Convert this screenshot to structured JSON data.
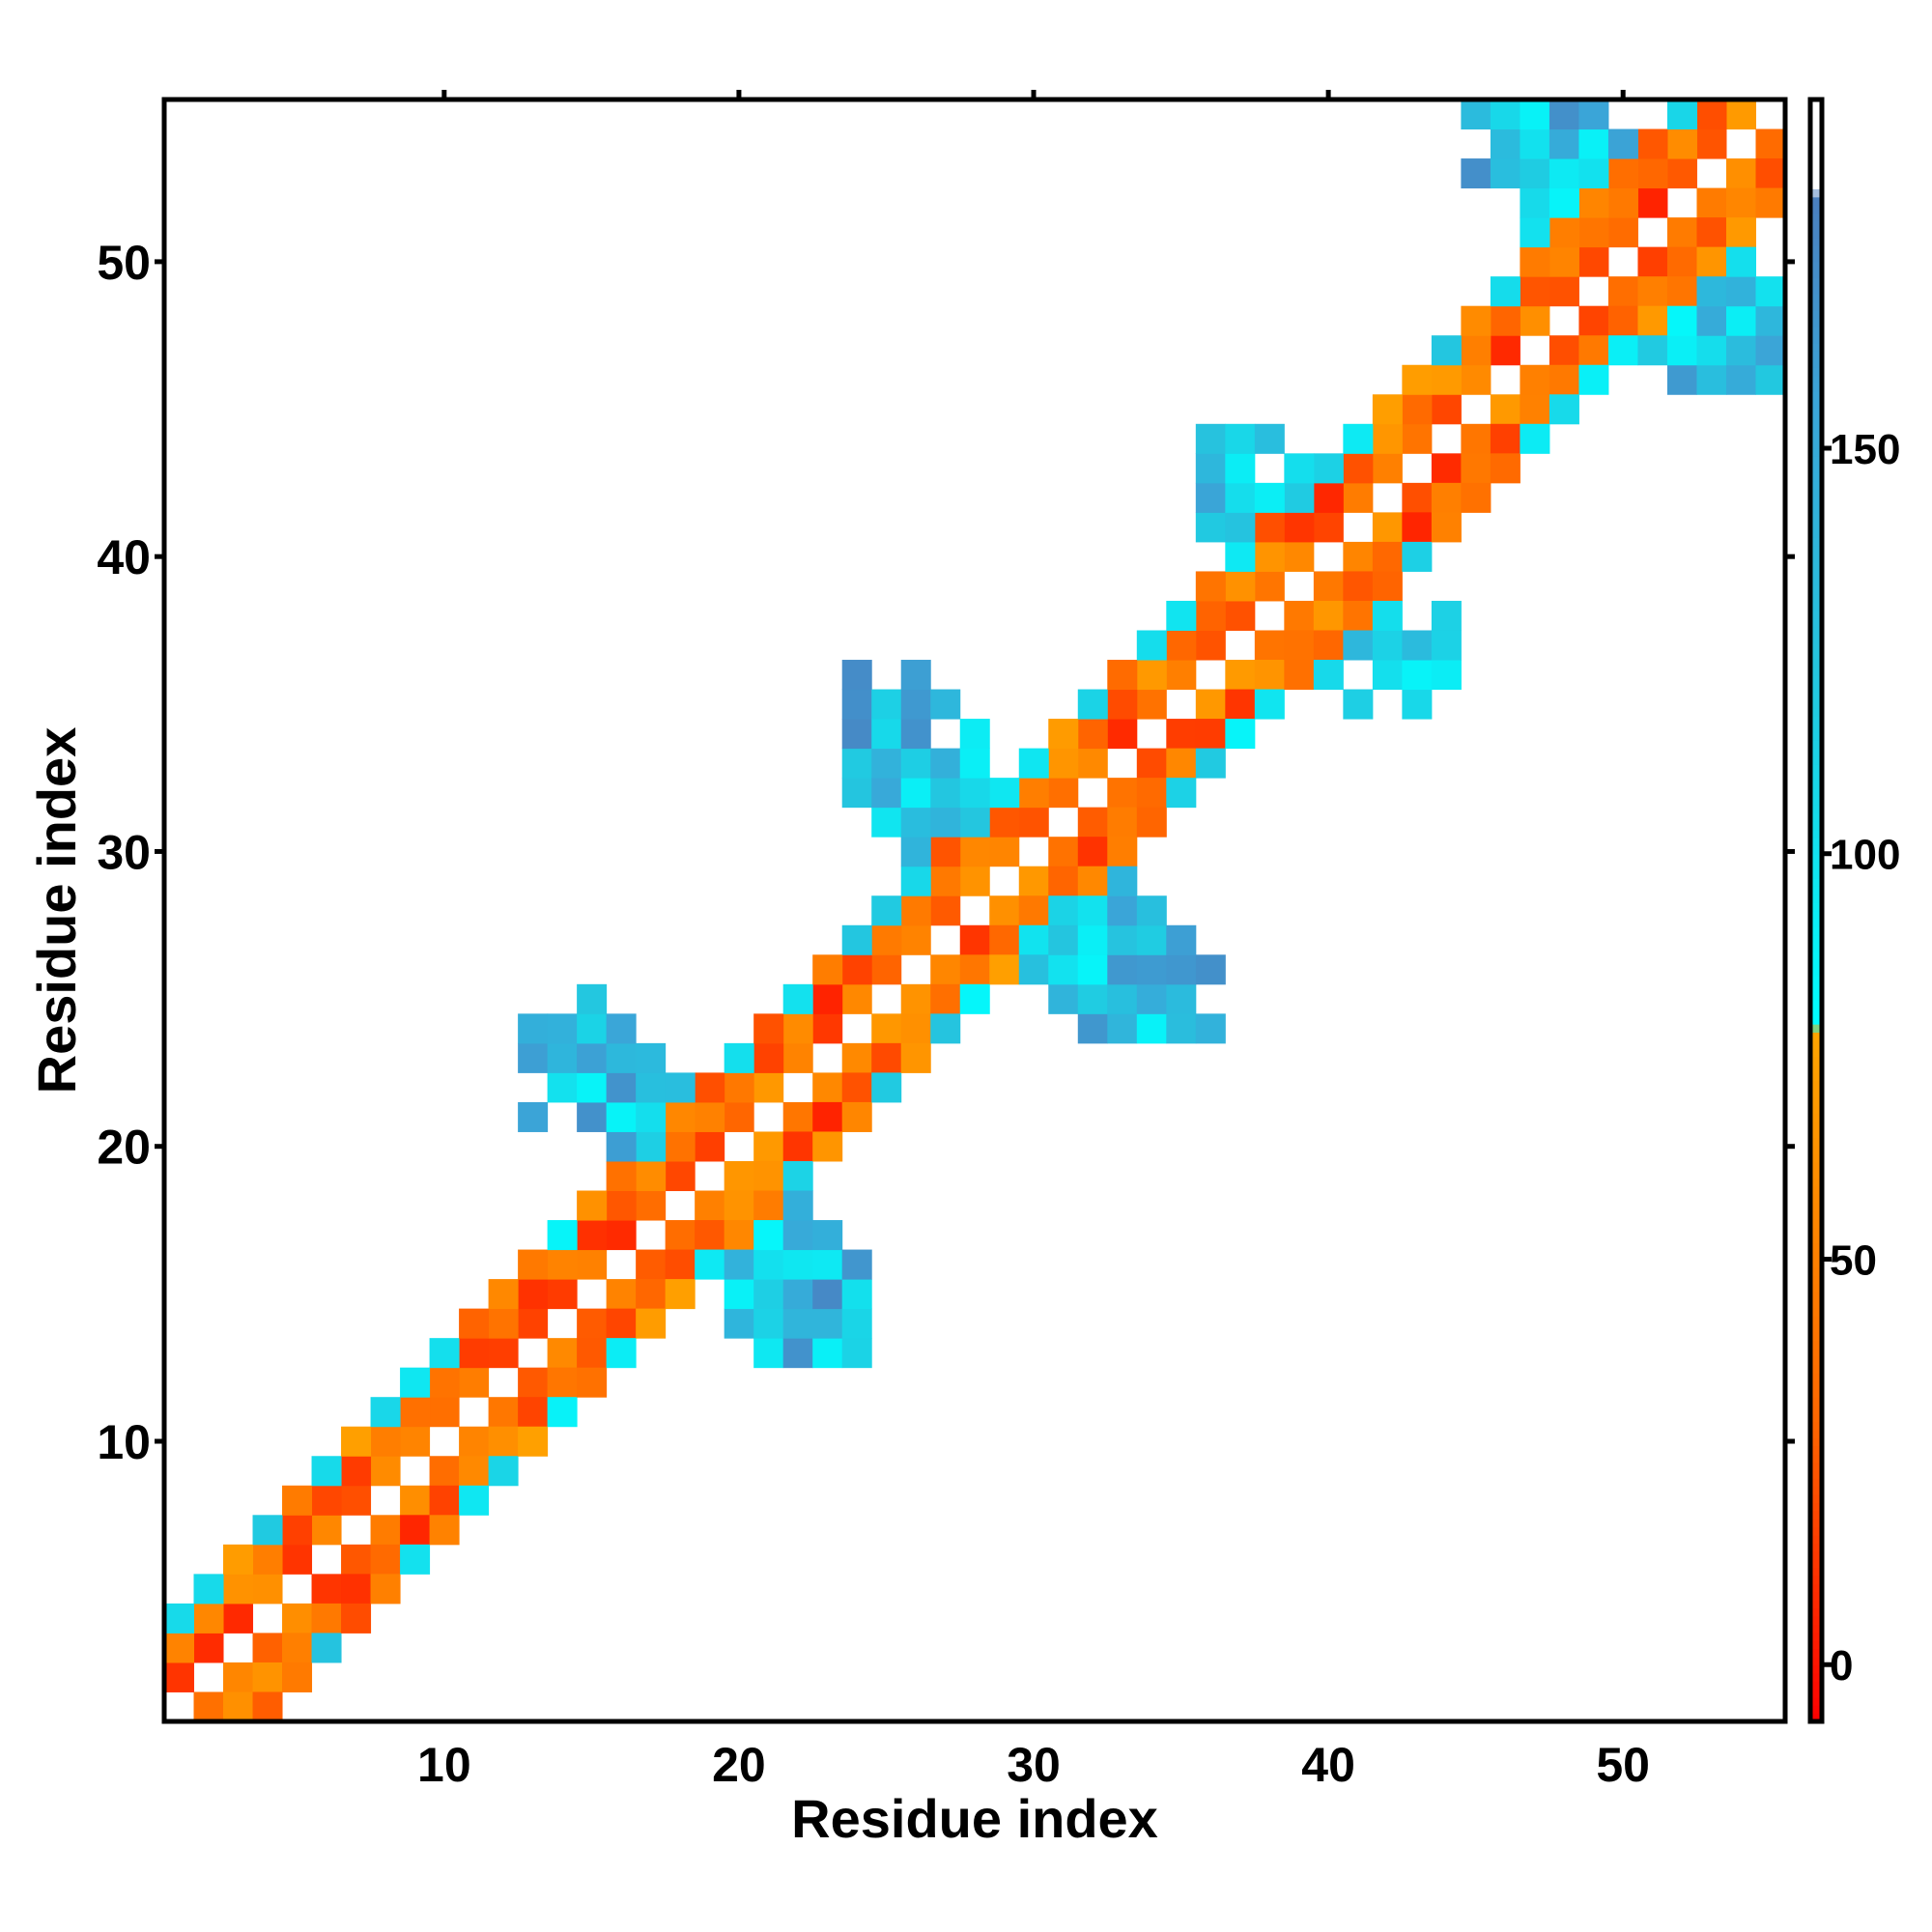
{
  "chart_data": {
    "type": "heatmap",
    "title": "",
    "xlabel": "Residue index",
    "ylabel": "Residue index",
    "xlim": [
      0.5,
      55.5
    ],
    "ylim": [
      0.5,
      55.5
    ],
    "xticks": [
      10,
      20,
      30,
      40,
      50
    ],
    "yticks": [
      10,
      20,
      30,
      40,
      50
    ],
    "grid": false,
    "legend": "none",
    "colorbar": {
      "position": "right",
      "ticks": [
        0,
        50,
        100,
        150
      ],
      "range": [
        -7,
        193
      ],
      "stops": [
        {
          "value": -7,
          "color": "#ff0000"
        },
        {
          "value": 30,
          "color": "#ff6600"
        },
        {
          "value": 78,
          "color": "#ffa500"
        },
        {
          "value": 79,
          "color": "#00ffff"
        },
        {
          "value": 120,
          "color": "#22c8e0"
        },
        {
          "value": 155,
          "color": "#3aa6d8"
        },
        {
          "value": 181,
          "color": "#4a7fc0"
        },
        {
          "value": 182,
          "color": "#ffffff"
        },
        {
          "value": 193,
          "color": "#ffffff"
        }
      ]
    },
    "diagonal_bands": [
      {
        "from": 1,
        "to": 55,
        "offsets": [
          1,
          -1,
          2,
          -2
        ],
        "values_by_residue": "low",
        "value_range": [
          5,
          70
        ]
      },
      {
        "from": 1,
        "to": 55,
        "offsets": [
          3,
          -3
        ],
        "values_by_residue": "mixed",
        "value_range": [
          40,
          120
        ]
      }
    ],
    "hairpin_blocks": [
      {
        "center": [
          18.5,
          18.5
        ],
        "x_range": [
          13,
          24
        ],
        "y_range": [
          13,
          25
        ],
        "value_range": [
          85,
          175
        ]
      },
      {
        "center": [
          29.5,
          29.5
        ],
        "x_range": [
          24,
          36
        ],
        "y_range": [
          24,
          36
        ],
        "value_range": [
          85,
          175
        ]
      },
      {
        "center": [
          39.5,
          39.5
        ],
        "x_range": [
          36,
          44
        ],
        "y_range": [
          35,
          44
        ],
        "value_range": [
          85,
          160
        ]
      },
      {
        "center": [
          50,
          51
        ],
        "x_range": [
          45,
          55
        ],
        "y_range": [
          46,
          55
        ],
        "value_range": [
          85,
          175
        ]
      }
    ],
    "diagonal_value": "none"
  }
}
